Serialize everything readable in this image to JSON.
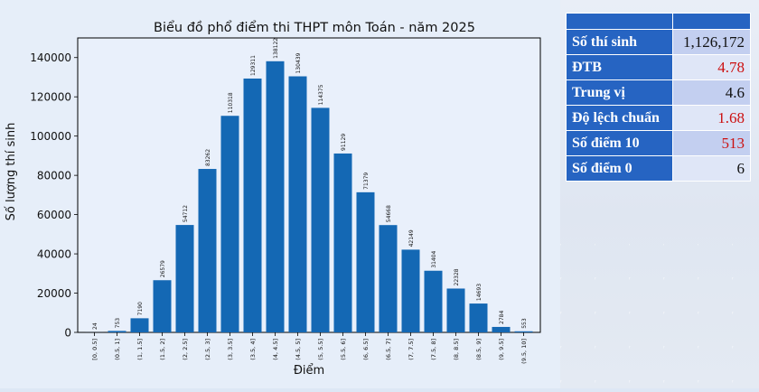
{
  "chart_data": {
    "type": "bar",
    "title": "Biểu đồ phổ điểm thi THPT môn Toán - năm 2025",
    "xlabel": "Điểm",
    "ylabel": "Số lượng thí sinh",
    "ylim": [
      0,
      150000
    ],
    "yticks": [
      "0",
      "20000",
      "40000",
      "60000",
      "80000",
      "100000",
      "120000",
      "140000"
    ],
    "categories": [
      "[0, 0.5]",
      "(0.5, 1]",
      "(1, 1.5]",
      "(1.5, 2]",
      "(2, 2.5]",
      "(2.5, 3]",
      "(3, 3.5]",
      "(3.5, 4]",
      "(4, 4.5]",
      "(4.5, 5]",
      "(5, 5.5]",
      "(5.5, 6]",
      "(6, 6.5]",
      "(6.5, 7]",
      "(7, 7.5]",
      "(7.5, 8]",
      "(8, 8.5]",
      "(8.5, 9]",
      "(9, 9.5]",
      "(9.5, 10]"
    ],
    "values": [
      24,
      753,
      7190,
      26579,
      54712,
      83262,
      110318,
      129311,
      138122,
      130439,
      114375,
      91129,
      71379,
      54668,
      42149,
      31404,
      22328,
      14693,
      2784,
      553
    ],
    "bar_color": "#1468b4",
    "grid": false
  },
  "stats": {
    "rows": [
      {
        "label": "Số thí sinh",
        "value": "1,126,172",
        "highlight": false
      },
      {
        "label": "ĐTB",
        "value": "4.78",
        "highlight": true
      },
      {
        "label": "Trung vị",
        "value": "4.6",
        "highlight": false
      },
      {
        "label": "Độ lệch chuẩn",
        "value": "1.68",
        "highlight": true
      },
      {
        "label": "Số điểm 10",
        "value": "513",
        "highlight": true
      },
      {
        "label": "Số điểm 0",
        "value": "6",
        "highlight": false
      }
    ],
    "header_color": "#2664c2",
    "highlight_color": "#cc1010"
  }
}
